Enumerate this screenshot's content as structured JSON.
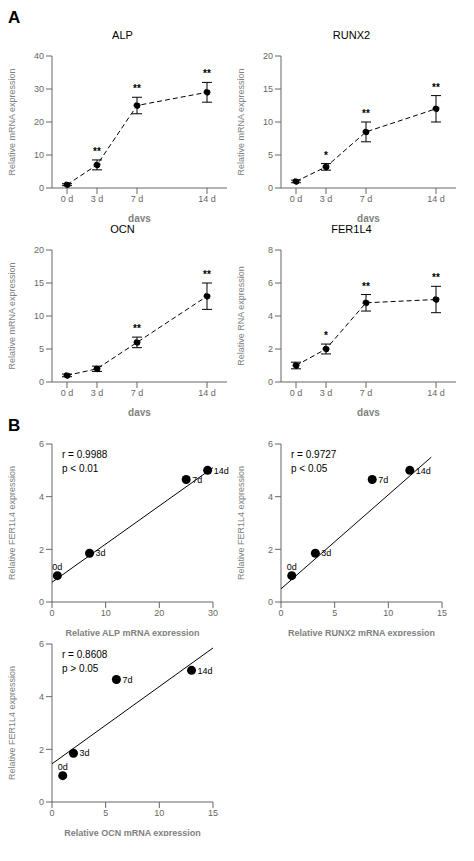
{
  "chart_data": [
    {
      "panel": "A",
      "type": "line",
      "title": "ALP",
      "x": [
        0,
        3,
        7,
        14
      ],
      "values": [
        1,
        7,
        25,
        29
      ],
      "yerr": [
        0.3,
        1.5,
        2.5,
        3.0
      ],
      "color": "black",
      "line_style": "dashed",
      "marker": "circle",
      "annotations": [
        {
          "x": 3,
          "text": "**"
        },
        {
          "x": 7,
          "text": "**"
        },
        {
          "x": 14,
          "text": "**"
        }
      ],
      "xlim": [
        -1.5,
        16
      ],
      "xticks": [
        {
          "value": 0,
          "label": "0 d"
        },
        {
          "value": 3,
          "label": "3 d"
        },
        {
          "value": 7,
          "label": "7 d"
        },
        {
          "value": 14,
          "label": "14 d"
        }
      ],
      "ylim": [
        0,
        40
      ],
      "yticks": [
        0,
        10,
        20,
        30,
        40
      ],
      "xlabel": "days",
      "ylabel": "Relative mRNA expression"
    },
    {
      "panel": "A",
      "type": "line",
      "title": "RUNX2",
      "x": [
        0,
        3,
        7,
        14
      ],
      "values": [
        1,
        3.2,
        8.5,
        12
      ],
      "yerr": [
        0.2,
        0.5,
        1.5,
        2.0
      ],
      "color": "black",
      "line_style": "dashed",
      "marker": "circle",
      "annotations": [
        {
          "x": 3,
          "text": "*"
        },
        {
          "x": 7,
          "text": "**"
        },
        {
          "x": 14,
          "text": "**"
        }
      ],
      "xlim": [
        -1.5,
        16
      ],
      "xticks": [
        {
          "value": 0,
          "label": "0 d"
        },
        {
          "value": 3,
          "label": "3 d"
        },
        {
          "value": 7,
          "label": "7 d"
        },
        {
          "value": 14,
          "label": "14 d"
        }
      ],
      "ylim": [
        0,
        20
      ],
      "yticks": [
        0,
        5,
        10,
        15,
        20
      ],
      "xlabel": "days",
      "ylabel": "Relative mRNA expression"
    },
    {
      "panel": "A",
      "type": "line",
      "title": "OCN",
      "x": [
        0,
        3,
        7,
        14
      ],
      "values": [
        1,
        2.0,
        6.0,
        13.0
      ],
      "yerr": [
        0.2,
        0.4,
        0.8,
        2.0
      ],
      "color": "black",
      "line_style": "dashed",
      "marker": "circle",
      "annotations": [
        {
          "x": 7,
          "text": "**"
        },
        {
          "x": 14,
          "text": "**"
        }
      ],
      "xlim": [
        -1.5,
        16
      ],
      "xticks": [
        {
          "value": 0,
          "label": "0 d"
        },
        {
          "value": 3,
          "label": "3 d"
        },
        {
          "value": 7,
          "label": "7 d"
        },
        {
          "value": 14,
          "label": "14 d"
        }
      ],
      "ylim": [
        0,
        20
      ],
      "yticks": [
        0,
        5,
        10,
        15,
        20
      ],
      "xlabel": "days",
      "ylabel": "Relative mRNA expression"
    },
    {
      "panel": "A",
      "type": "line",
      "title": "FER1L4",
      "x": [
        0,
        3,
        7,
        14
      ],
      "values": [
        1,
        2.0,
        4.8,
        5.0
      ],
      "yerr": [
        0.2,
        0.3,
        0.5,
        0.8
      ],
      "color": "black",
      "line_style": "dashed",
      "marker": "circle",
      "annotations": [
        {
          "x": 3,
          "text": "*"
        },
        {
          "x": 7,
          "text": "**"
        },
        {
          "x": 14,
          "text": "**"
        }
      ],
      "xlim": [
        -1.5,
        16
      ],
      "xticks": [
        {
          "value": 0,
          "label": "0 d"
        },
        {
          "value": 3,
          "label": "3 d"
        },
        {
          "value": 7,
          "label": "7 d"
        },
        {
          "value": 14,
          "label": "14 d"
        }
      ],
      "ylim": [
        0,
        8
      ],
      "yticks": [
        0,
        2,
        4,
        6,
        8
      ],
      "xlabel": "days",
      "ylabel": "Relative RNA expression"
    },
    {
      "panel": "B",
      "type": "scatter",
      "x": [
        1,
        7,
        25,
        29
      ],
      "values": [
        1.0,
        1.85,
        4.65,
        5.0
      ],
      "labels": [
        "0d",
        "3d",
        "7d",
        "14d"
      ],
      "color": "black",
      "fit": {
        "x": [
          0,
          30
        ],
        "values": [
          0.75,
          5.1
        ]
      },
      "annotations": [
        {
          "text": "r = 0.9988"
        },
        {
          "text": "p < 0.01"
        }
      ],
      "xlim": [
        0,
        30
      ],
      "xticks": [
        0,
        10,
        20,
        30
      ],
      "ylim": [
        0,
        6
      ],
      "yticks": [
        0,
        2,
        4,
        6
      ],
      "xlabel": "Relative ALP mRNA expression",
      "ylabel": "Relative FER1L4 expression"
    },
    {
      "panel": "B",
      "type": "scatter",
      "x": [
        1,
        3.2,
        8.5,
        12
      ],
      "values": [
        1.0,
        1.85,
        4.65,
        5.0
      ],
      "labels": [
        "0d",
        "3d",
        "7d",
        "14d"
      ],
      "color": "black",
      "fit": {
        "x": [
          0,
          14
        ],
        "values": [
          0.5,
          5.5
        ]
      },
      "annotations": [
        {
          "text": "r = 0.9727"
        },
        {
          "text": "p < 0.05"
        }
      ],
      "xlim": [
        0,
        15
      ],
      "xticks": [
        0,
        5,
        10,
        15
      ],
      "ylim": [
        0,
        6
      ],
      "yticks": [
        0,
        2,
        4,
        6
      ],
      "xlabel": "Relative RUNX2 mRNA expression",
      "ylabel": "Relative FER1L4 expression"
    },
    {
      "panel": "B",
      "type": "scatter",
      "x": [
        1,
        2.0,
        6.0,
        13.0
      ],
      "values": [
        1.0,
        1.85,
        4.65,
        5.0
      ],
      "labels": [
        "0d",
        "3d",
        "7d",
        "14d"
      ],
      "color": "black",
      "fit": {
        "x": [
          0,
          15
        ],
        "values": [
          1.45,
          5.85
        ]
      },
      "annotations": [
        {
          "text": "r = 0.8608"
        },
        {
          "text": "p > 0.05"
        }
      ],
      "xlim": [
        0,
        15
      ],
      "xticks": [
        0,
        5,
        10,
        15
      ],
      "ylim": [
        0,
        6
      ],
      "yticks": [
        0,
        2,
        4,
        6
      ],
      "xlabel": "Relative OCN mRNA expression",
      "ylabel": "Relative FER1L4 expression"
    }
  ]
}
